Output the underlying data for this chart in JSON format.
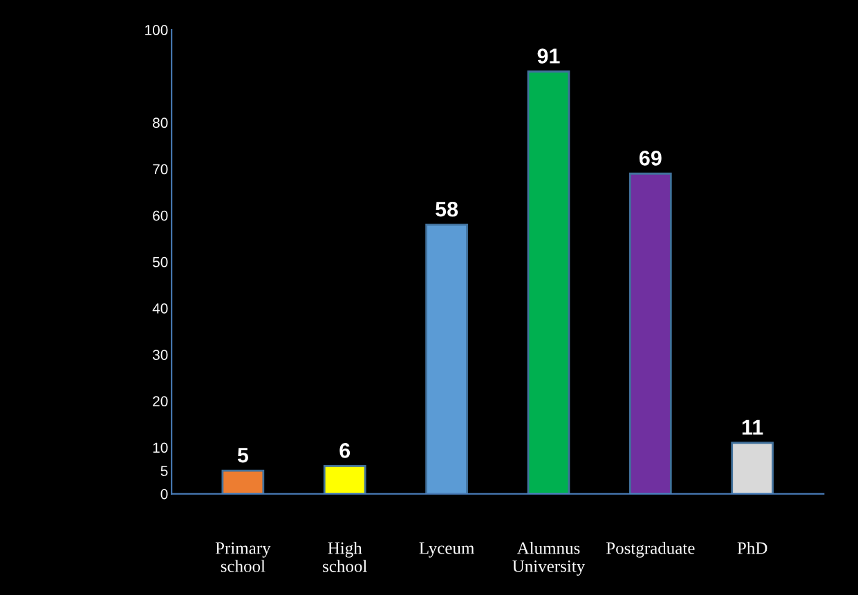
{
  "chart_data": {
    "type": "bar",
    "categories": [
      "Primary\nschool",
      "High\nschool",
      "Lyceum",
      "Alumnus\nUniversity",
      "Postgraduate",
      "PhD"
    ],
    "values": [
      5,
      6,
      58,
      91,
      69,
      11
    ],
    "colors": [
      "#ed7d31",
      "#ffff00",
      "#5b9bd5",
      "#00b050",
      "#7030a0",
      "#d9d9d9"
    ],
    "ylim": [
      0,
      100
    ],
    "yticks": [
      0,
      5,
      10,
      20,
      30,
      40,
      50,
      60,
      70,
      80,
      100
    ],
    "data_labels": true,
    "grid": false,
    "legend": false
  }
}
